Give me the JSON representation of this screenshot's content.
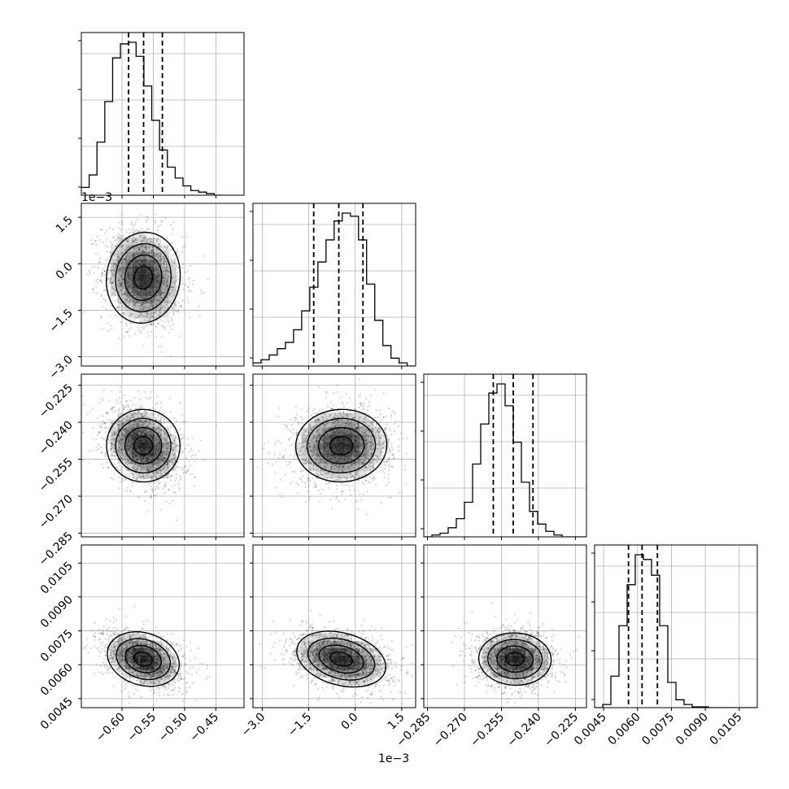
{
  "chart_data": {
    "type": "corner",
    "parameters": 4,
    "grid": true,
    "axes": {
      "p0": {
        "lim": [
          -0.665,
          -0.405
        ],
        "ticks": [
          -0.6,
          -0.55,
          -0.5,
          -0.45
        ],
        "tick_labels": [
          "−0.60",
          "−0.55",
          "−0.50",
          "−0.45"
        ],
        "offset": ""
      },
      "p1": {
        "lim": [
          -3.3,
          1.95
        ],
        "ticks": [
          -3.0,
          -1.5,
          0.0,
          1.5
        ],
        "tick_labels": [
          "−3.0",
          "−1.5",
          "0.0",
          "1.5"
        ],
        "offset": "1e−3"
      },
      "p2": {
        "lim": [
          -0.2865,
          -0.2205
        ],
        "ticks": [
          -0.285,
          -0.27,
          -0.255,
          -0.24,
          -0.225
        ],
        "tick_labels": [
          "−0.285",
          "−0.270",
          "−0.255",
          "−0.240",
          "−0.225"
        ],
        "offset": ""
      },
      "p3": {
        "lim": [
          0.0041,
          0.0113
        ],
        "ticks": [
          0.0045,
          0.006,
          0.0075,
          0.009,
          0.0105
        ],
        "tick_labels": [
          "0.0045",
          "0.0060",
          "0.0075",
          "0.0090",
          "0.0105"
        ],
        "offset": ""
      }
    },
    "marginals": [
      {
        "param": "p0",
        "bin_start": -0.665,
        "bin_width": 0.0125,
        "counts": [
          0.05,
          0.13,
          0.34,
          0.6,
          0.88,
          0.97,
          0.98,
          0.89,
          0.7,
          0.48,
          0.29,
          0.18,
          0.11,
          0.06,
          0.03,
          0.02,
          0.01,
          0.0
        ],
        "quantiles": [
          -0.5895,
          -0.5655,
          -0.5355
        ]
      },
      {
        "param": "p1",
        "bin_start": -3.3,
        "bin_width": 0.262,
        "counts": [
          0.02,
          0.04,
          0.07,
          0.11,
          0.15,
          0.23,
          0.35,
          0.5,
          0.66,
          0.8,
          0.92,
          0.97,
          0.95,
          0.8,
          0.52,
          0.29,
          0.13,
          0.05,
          0.02,
          0.0
        ],
        "quantiles": [
          -1.34,
          -0.53,
          0.25
        ]
      },
      {
        "param": "p2",
        "bin_start": -0.2865,
        "bin_width": 0.0033,
        "counts": [
          0.0,
          0.01,
          0.02,
          0.05,
          0.1,
          0.19,
          0.4,
          0.62,
          0.79,
          0.84,
          0.72,
          0.52,
          0.3,
          0.14,
          0.07,
          0.03,
          0.01,
          0.0,
          0.0,
          0.0
        ],
        "quantiles": [
          -0.2583,
          -0.2502,
          -0.2422
        ]
      },
      {
        "param": "p3",
        "bin_start": 0.0041,
        "bin_width": 0.00036,
        "counts": [
          0.0,
          0.02,
          0.2,
          0.52,
          0.78,
          0.97,
          0.94,
          0.84,
          0.52,
          0.16,
          0.05,
          0.02,
          0.005,
          0.005,
          0.0,
          0.0,
          0.0,
          0.0,
          0.0,
          0.0
        ],
        "quantiles": [
          0.0056,
          0.0062,
          0.00688
        ]
      }
    ],
    "pairs": [
      {
        "x": "p0",
        "y": "p1",
        "mean": [
          -0.566,
          -0.45
        ],
        "std": [
          0.028,
          0.7
        ],
        "corr": -0.15
      },
      {
        "x": "p0",
        "y": "p2",
        "mean": [
          -0.566,
          -0.2495
        ],
        "std": [
          0.028,
          0.007
        ],
        "corr": -0.3
      },
      {
        "x": "p1",
        "y": "p2",
        "mean": [
          -0.45,
          -0.2495
        ],
        "std": [
          0.7,
          0.007
        ],
        "corr": 0.05
      },
      {
        "x": "p0",
        "y": "p3",
        "mean": [
          -0.566,
          0.00625
        ],
        "std": [
          0.028,
          0.00055
        ],
        "corr": -0.35
      },
      {
        "x": "p1",
        "y": "p3",
        "mean": [
          -0.45,
          0.00625
        ],
        "std": [
          0.7,
          0.00055
        ],
        "corr": -0.3
      },
      {
        "x": "p2",
        "y": "p3",
        "mean": [
          -0.2495,
          0.00625
        ],
        "std": [
          0.007,
          0.00055
        ],
        "corr": -0.05
      }
    ]
  }
}
